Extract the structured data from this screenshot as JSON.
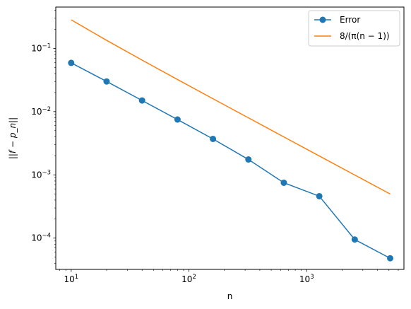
{
  "chart_data": {
    "type": "line",
    "title": "",
    "xlabel": "n",
    "ylabel": "||f − p_n||",
    "xscale": "log",
    "yscale": "log",
    "xlim": [
      7.4,
      6700
    ],
    "ylim": [
      3.2e-05,
      0.45
    ],
    "grid": false,
    "legend_position": "top-right",
    "x_ticks": [
      {
        "value": 10,
        "base": "10",
        "exp": "1"
      },
      {
        "value": 100,
        "base": "10",
        "exp": "2"
      },
      {
        "value": 1000,
        "base": "10",
        "exp": "3"
      }
    ],
    "y_ticks": [
      {
        "value": 0.1,
        "base": "10",
        "exp": "−1"
      },
      {
        "value": 0.01,
        "base": "10",
        "exp": "−2"
      },
      {
        "value": 0.001,
        "base": "10",
        "exp": "−3"
      },
      {
        "value": 0.0001,
        "base": "10",
        "exp": "−4"
      }
    ],
    "series": [
      {
        "name": "Error",
        "color": "#1f77b4",
        "marker": "circle",
        "x": [
          10,
          20,
          40,
          80,
          160,
          320,
          640,
          1280,
          2560,
          5120
        ],
        "y": [
          0.059,
          0.03,
          0.015,
          0.0075,
          0.0037,
          0.00175,
          0.00075,
          0.00046,
          9.5e-05,
          4.8e-05
        ]
      },
      {
        "name": "8/(π(n − 1))",
        "color": "#ff7f0e",
        "marker": "none",
        "x": [
          10,
          20,
          40,
          80,
          160,
          320,
          640,
          1280,
          2560,
          5120
        ],
        "y": [
          0.2829,
          0.134,
          0.0653,
          0.0322,
          0.016,
          0.00798,
          0.00398,
          0.00199,
          0.000995,
          0.000498
        ]
      }
    ]
  }
}
